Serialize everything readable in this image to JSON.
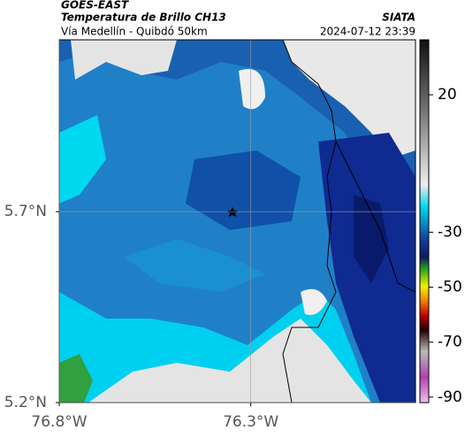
{
  "header": {
    "title": "GOES-EAST",
    "subtitle": "Temperatura de Brillo CH13",
    "location": "Vía Medellín - Quibdó 50km",
    "source": "SIATA",
    "datetime": "2024-07-12 23:39"
  },
  "map": {
    "lon_range": [
      -76.8,
      -75.87
    ],
    "lat_range": [
      5.2,
      6.15
    ],
    "lon_ticks": [
      {
        "value": -76.8,
        "label": "76.8°W"
      },
      {
        "value": -76.3,
        "label": "76.3°W"
      }
    ],
    "lat_ticks": [
      {
        "value": 5.7,
        "label": "5.7°N"
      },
      {
        "value": 5.2,
        "label": "5.2°N"
      }
    ]
  },
  "colorbar": {
    "range": [
      40,
      -92
    ],
    "ticks": [
      20,
      -30,
      -50,
      -70,
      -90
    ]
  }
}
